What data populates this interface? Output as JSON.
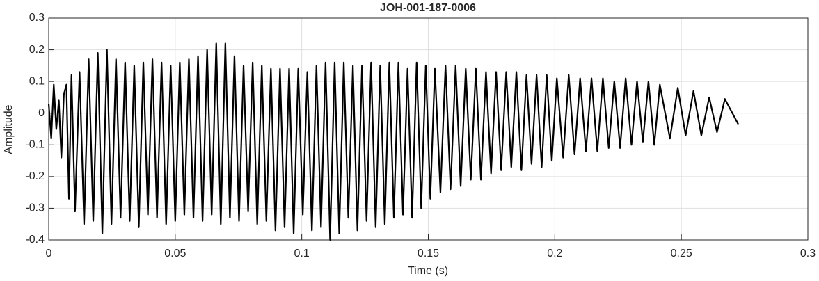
{
  "chart_data": {
    "type": "line",
    "title": "JOH-001-187-0006",
    "xlabel": "Time (s)",
    "ylabel": "Amplitude",
    "xlim": [
      0,
      0.3
    ],
    "xticks": [
      0,
      0.05,
      0.1,
      0.15,
      0.2,
      0.25,
      0.3
    ],
    "ylim": [
      -0.4,
      0.3
    ],
    "yticks": [
      -0.4,
      -0.3,
      -0.2,
      -0.1,
      0,
      0.1,
      0.2,
      0.3
    ],
    "grid": true,
    "series": [
      {
        "name": "JOH-001-187-0006",
        "color": "#000000",
        "x": [
          0,
          0.001,
          0.002,
          0.003,
          0.004,
          0.005,
          0.006,
          0.007,
          0.008,
          0.009,
          0.0104,
          0.0122,
          0.014,
          0.0158,
          0.0176,
          0.0194,
          0.0212,
          0.023,
          0.0248,
          0.0266,
          0.0284,
          0.0302,
          0.032,
          0.0338,
          0.0356,
          0.0374,
          0.0392,
          0.041,
          0.0428,
          0.0446,
          0.0464,
          0.0482,
          0.05,
          0.0518,
          0.0536,
          0.0554,
          0.0572,
          0.059,
          0.0608,
          0.0626,
          0.0644,
          0.0662,
          0.068,
          0.0698,
          0.0716,
          0.0734,
          0.0752,
          0.077,
          0.0788,
          0.0806,
          0.0824,
          0.0842,
          0.086,
          0.0878,
          0.0896,
          0.0914,
          0.0932,
          0.095,
          0.0968,
          0.0986,
          0.1004,
          0.1022,
          0.104,
          0.1058,
          0.1076,
          0.1094,
          0.1112,
          0.113,
          0.1148,
          0.1166,
          0.1184,
          0.1202,
          0.122,
          0.1238,
          0.1256,
          0.1274,
          0.1292,
          0.131,
          0.1328,
          0.1346,
          0.1364,
          0.1382,
          0.14,
          0.1418,
          0.1436,
          0.1454,
          0.1472,
          0.149,
          0.1508,
          0.1526,
          0.1548,
          0.1568,
          0.1588,
          0.1608,
          0.1628,
          0.1648,
          0.1668,
          0.1688,
          0.1708,
          0.1728,
          0.1748,
          0.1768,
          0.1788,
          0.1808,
          0.1828,
          0.1848,
          0.1868,
          0.1888,
          0.1908,
          0.1928,
          0.1948,
          0.1968,
          0.1988,
          0.2008,
          0.2033,
          0.2055,
          0.2078,
          0.21,
          0.2123,
          0.2145,
          0.2168,
          0.219,
          0.2213,
          0.2235,
          0.2258,
          0.228,
          0.2303,
          0.2325,
          0.2348,
          0.237,
          0.2393,
          0.2415,
          0.2455,
          0.2486,
          0.2517,
          0.2548,
          0.2579,
          0.261,
          0.2641,
          0.2672,
          0.2725
        ],
        "values": [
          0.03,
          -0.08,
          0.09,
          -0.05,
          0.04,
          -0.14,
          0.06,
          0.09,
          -0.27,
          0.12,
          -0.31,
          0.13,
          -0.35,
          0.17,
          -0.34,
          0.19,
          -0.38,
          0.2,
          -0.35,
          0.17,
          -0.33,
          0.16,
          -0.34,
          0.15,
          -0.36,
          0.16,
          -0.32,
          0.17,
          -0.33,
          0.16,
          -0.35,
          0.15,
          -0.34,
          0.16,
          -0.32,
          0.17,
          -0.33,
          0.18,
          -0.34,
          0.2,
          -0.32,
          0.22,
          -0.35,
          0.22,
          -0.33,
          0.18,
          -0.34,
          0.15,
          -0.31,
          0.16,
          -0.35,
          0.15,
          -0.34,
          0.14,
          -0.37,
          0.14,
          -0.36,
          0.14,
          -0.38,
          0.14,
          -0.32,
          0.13,
          -0.37,
          0.15,
          -0.36,
          0.16,
          -0.4,
          0.16,
          -0.38,
          0.16,
          -0.33,
          0.15,
          -0.37,
          0.15,
          -0.34,
          0.16,
          -0.36,
          0.15,
          -0.35,
          0.16,
          -0.33,
          0.16,
          -0.32,
          0.14,
          -0.33,
          0.16,
          -0.3,
          0.15,
          -0.27,
          0.14,
          -0.25,
          0.15,
          -0.24,
          0.15,
          -0.23,
          0.14,
          -0.21,
          0.14,
          -0.21,
          0.13,
          -0.19,
          0.13,
          -0.18,
          0.13,
          -0.17,
          0.13,
          -0.18,
          0.12,
          -0.16,
          0.12,
          -0.17,
          0.12,
          -0.15,
          0.11,
          -0.14,
          0.12,
          -0.13,
          0.11,
          -0.12,
          0.11,
          -0.12,
          0.11,
          -0.11,
          0.1,
          -0.11,
          0.11,
          -0.1,
          0.1,
          -0.09,
          0.1,
          -0.1,
          0.09,
          -0.08,
          0.08,
          -0.07,
          0.07,
          -0.07,
          0.05,
          -0.06,
          0.045,
          -0.035
        ]
      }
    ]
  }
}
